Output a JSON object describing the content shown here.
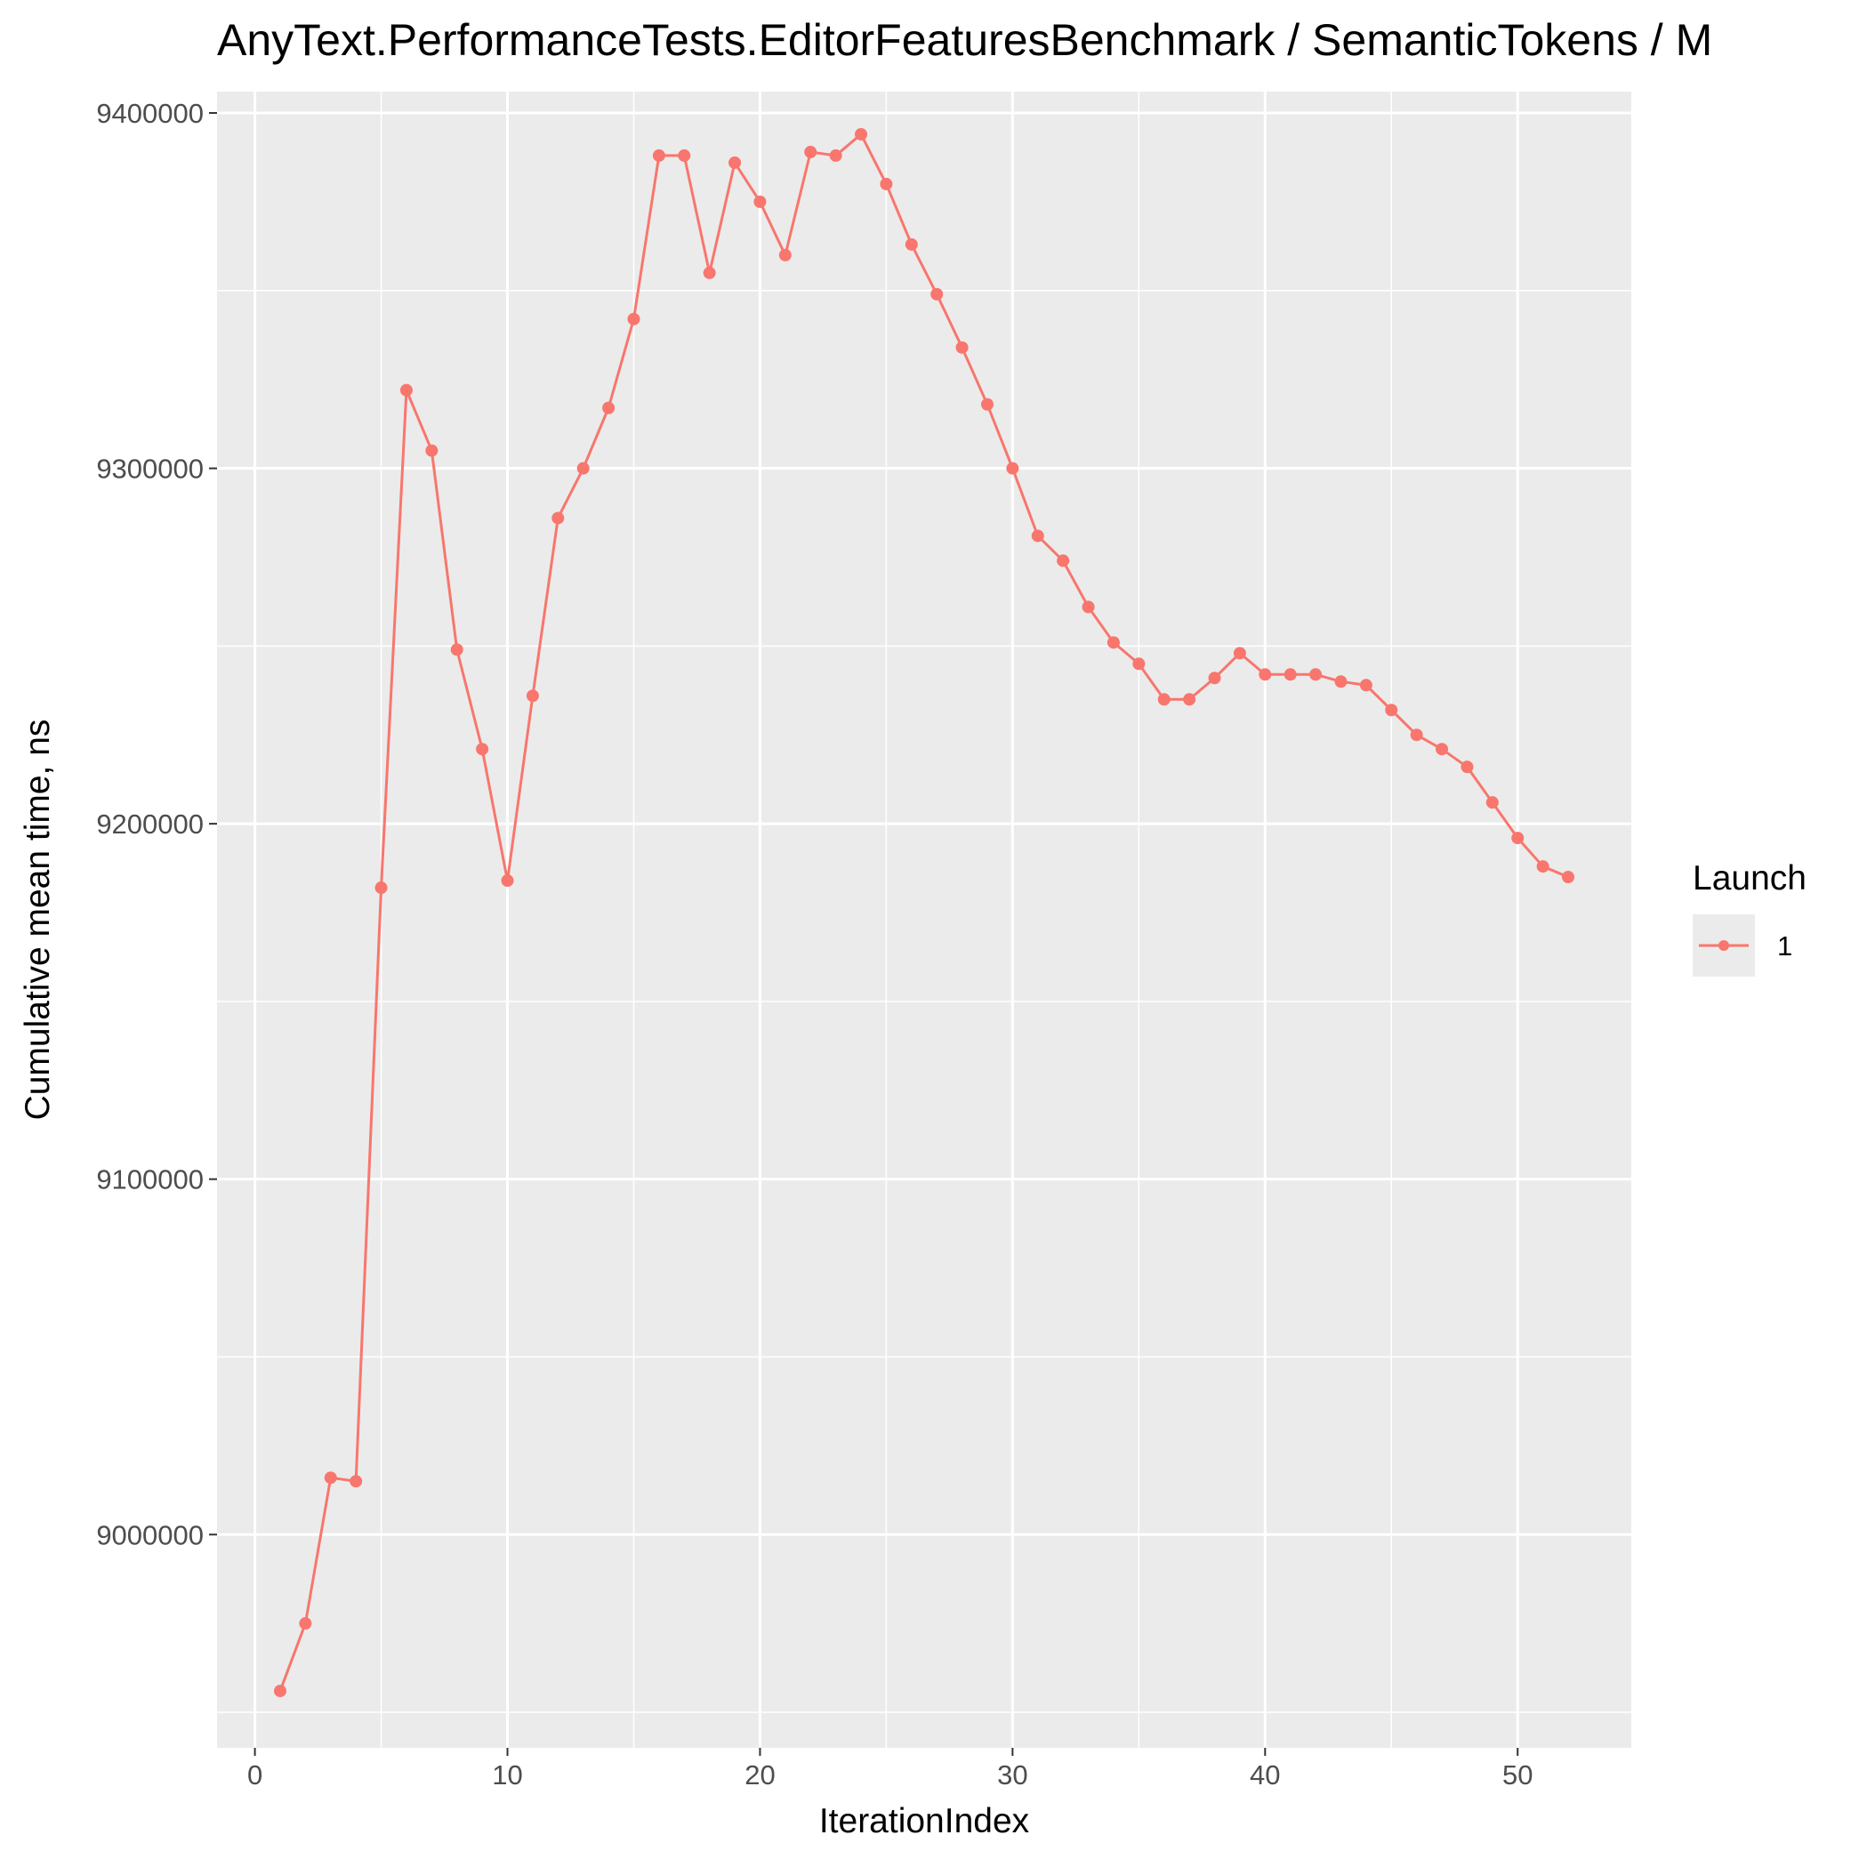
{
  "chart_data": {
    "type": "line",
    "title": "AnyText.PerformanceTests.EditorFeaturesBenchmark / SemanticTokens / M",
    "xlabel": "IterationIndex",
    "ylabel": "Cumulative mean time, ns",
    "xlim": [
      -1.5,
      54.5
    ],
    "ylim": [
      8940000,
      9406000
    ],
    "x_ticks": [
      0,
      10,
      20,
      30,
      40,
      50
    ],
    "x_minor": [
      5,
      15,
      25,
      35,
      45
    ],
    "x_tick_labels": [
      "0",
      "10",
      "20",
      "30",
      "40",
      "50"
    ],
    "y_ticks": [
      9000000,
      9100000,
      9200000,
      9300000,
      9400000
    ],
    "y_minor": [
      8950000,
      9050000,
      9150000,
      9250000,
      9350000
    ],
    "y_tick_labels": [
      "9000000",
      "9100000",
      "9200000",
      "9300000",
      "9400000"
    ],
    "grid": true,
    "colors": {
      "series": "#F8766D",
      "panel": "#EBEBEB",
      "grid": "#FFFFFF"
    },
    "legend": {
      "title": "Launch",
      "position": "right"
    },
    "series": [
      {
        "name": "1",
        "x": [
          1,
          2,
          3,
          4,
          5,
          6,
          7,
          8,
          9,
          10,
          11,
          12,
          13,
          14,
          15,
          16,
          17,
          18,
          19,
          20,
          21,
          22,
          23,
          24,
          25,
          26,
          27,
          28,
          29,
          30,
          31,
          32,
          33,
          34,
          35,
          36,
          37,
          38,
          39,
          40,
          41,
          42,
          43,
          44,
          45,
          46,
          47,
          48,
          49,
          50,
          51,
          52
        ],
        "values": [
          8956000,
          8975000,
          9016000,
          9015000,
          9182000,
          9322000,
          9305000,
          9249000,
          9221000,
          9184000,
          9236000,
          9286000,
          9300000,
          9317000,
          9342000,
          9388000,
          9388000,
          9355000,
          9386000,
          9375000,
          9360000,
          9389000,
          9388000,
          9394000,
          9380000,
          9363000,
          9349000,
          9334000,
          9318000,
          9300000,
          9281000,
          9274000,
          9261000,
          9251000,
          9245000,
          9235000,
          9235000,
          9241000,
          9248000,
          9242000,
          9242000,
          9242000,
          9240000,
          9239000,
          9232000,
          9225000,
          9221000,
          9216000,
          9206000,
          9196000,
          9188000,
          9185000
        ]
      }
    ]
  }
}
